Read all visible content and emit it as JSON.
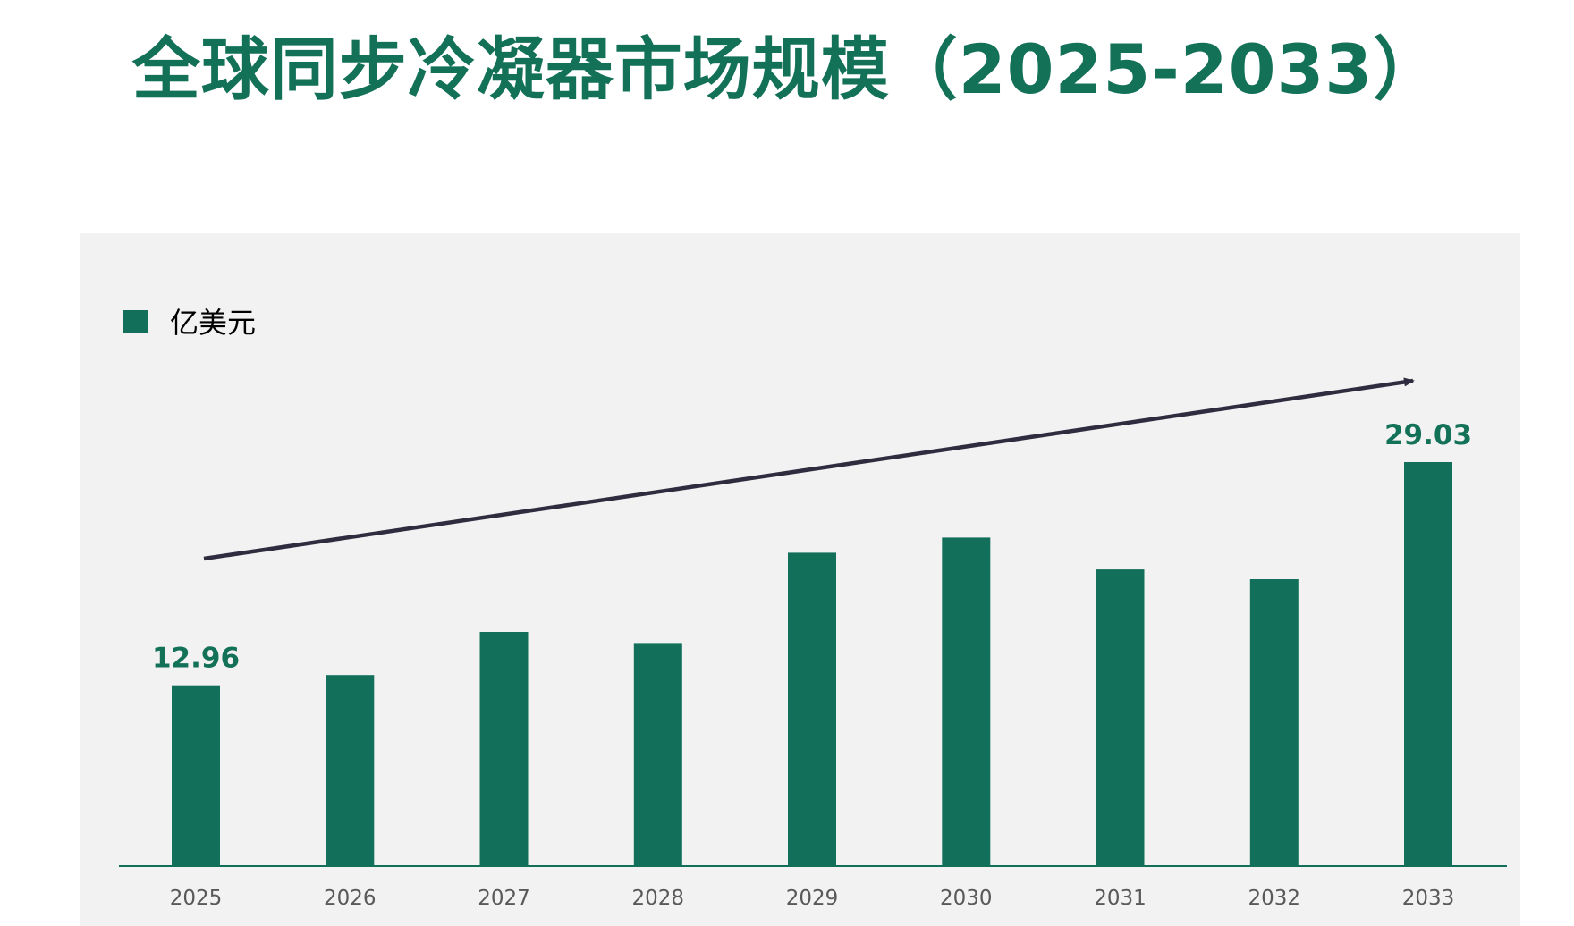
{
  "title": "全球同步冷凝器市场规模（2025-2033）",
  "colors": {
    "title": "#137158",
    "bar": "#12705A",
    "panel_bg": "#F2F2F2",
    "axis": "#12705A",
    "arrow": "#2E2C3E",
    "tick_text": "#595959",
    "legend_text": "#000000",
    "data_label": "#137158"
  },
  "chart_data": {
    "type": "bar",
    "categories": [
      "2025",
      "2026",
      "2027",
      "2028",
      "2029",
      "2030",
      "2031",
      "2032",
      "2033"
    ],
    "series": [
      {
        "name": "亿美元",
        "values": [
          12.96,
          13.7,
          16.8,
          16.0,
          22.5,
          23.6,
          21.3,
          20.6,
          29.03
        ]
      }
    ],
    "data_labels": [
      {
        "category": "2025",
        "text": "12.96"
      },
      {
        "category": "2033",
        "text": "29.03"
      }
    ],
    "legend": {
      "position": "top-left",
      "entries": [
        "亿美元"
      ]
    },
    "annotations": [
      {
        "type": "trend-arrow",
        "direction": "up-right",
        "from": "2025",
        "to": "2033"
      }
    ],
    "xlabel": "",
    "ylabel": "",
    "ylim": [
      0,
      29.03
    ],
    "grid": false
  }
}
